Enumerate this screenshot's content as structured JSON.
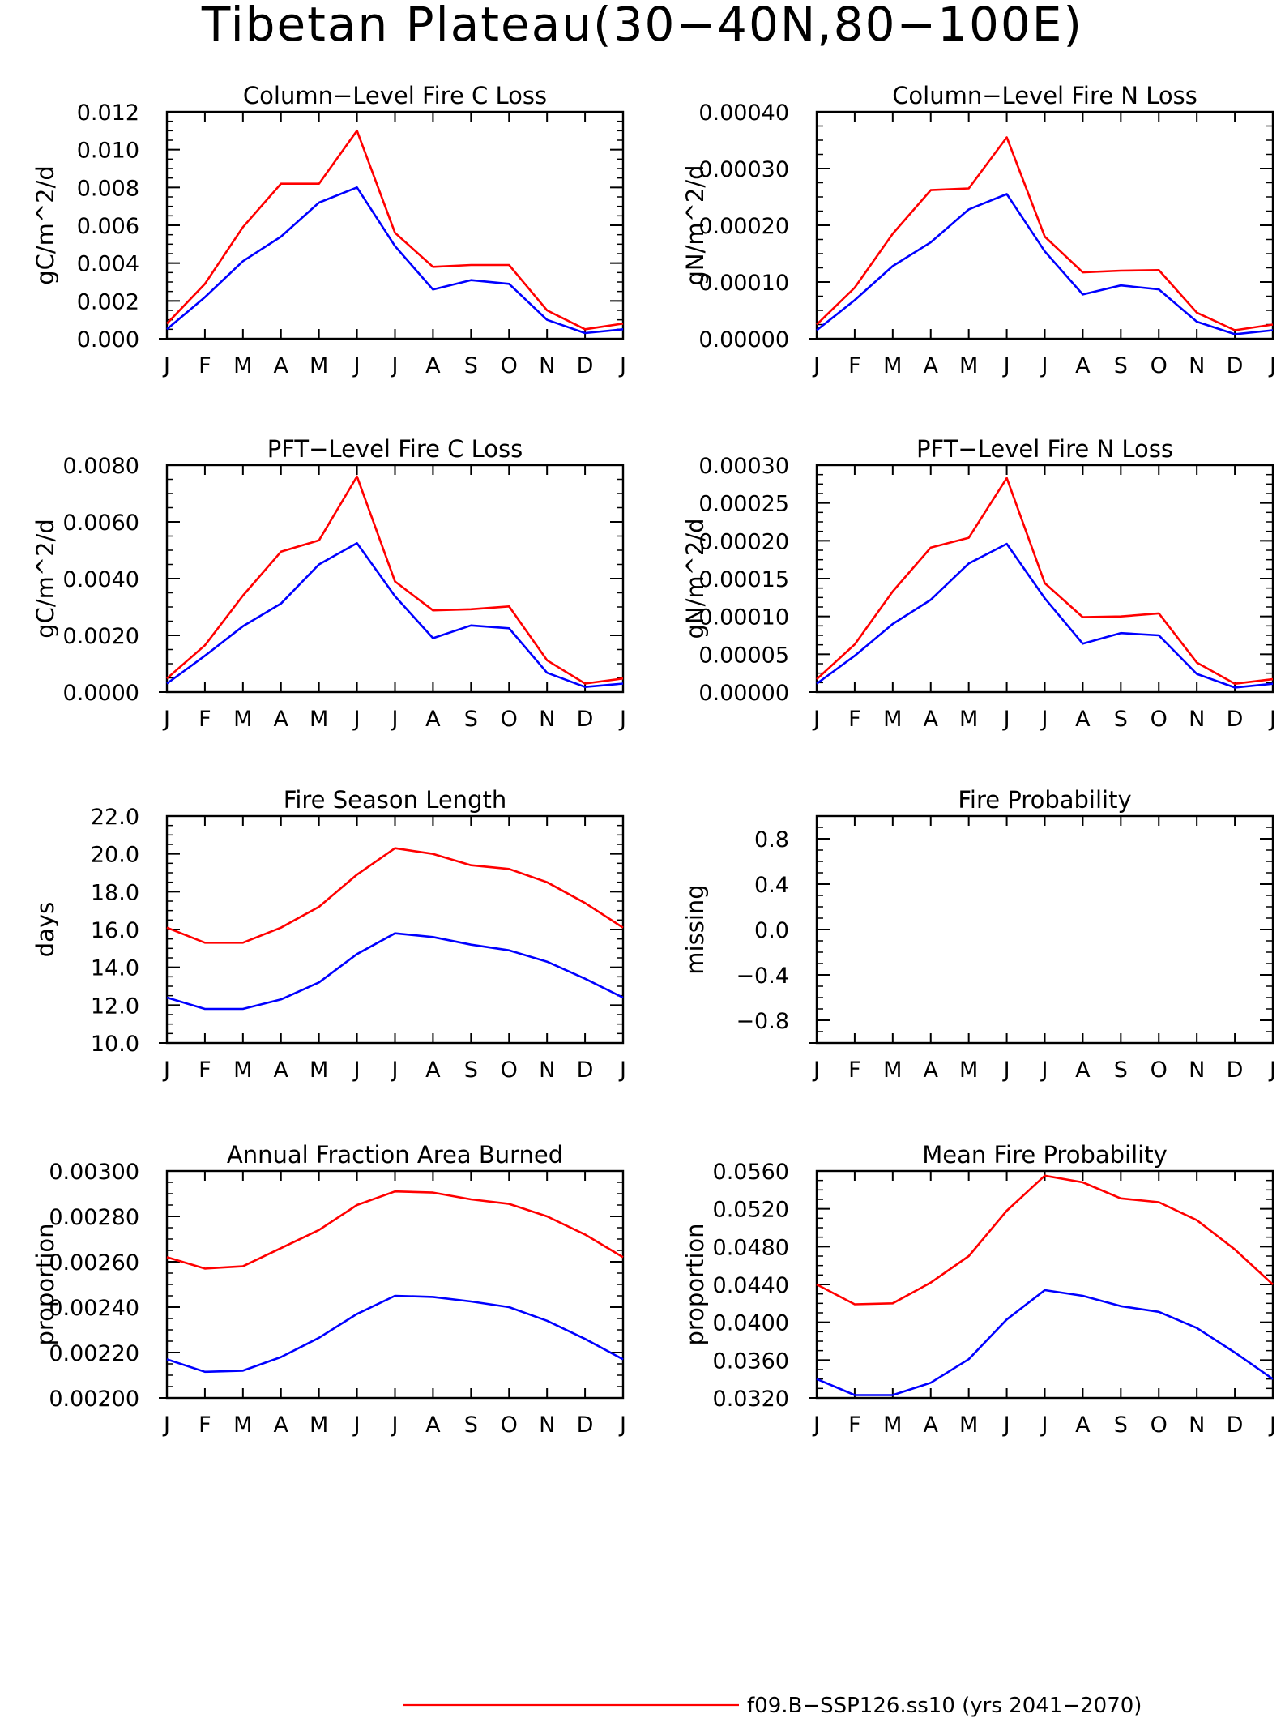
{
  "figure": {
    "title": "Tibetan Plateau(30−40N,80−100E)"
  },
  "legend": [
    {
      "label": "f09.B−SSP126.ss10 (yrs 2041−2070)",
      "color": "#ff0000"
    }
  ],
  "chart_data": [
    {
      "type": "line",
      "title": "Column−Level Fire C Loss",
      "ylabel": "gC/m^2/d",
      "categories": [
        "J",
        "F",
        "M",
        "A",
        "M",
        "J",
        "J",
        "A",
        "S",
        "O",
        "N",
        "D",
        "J"
      ],
      "ylim": [
        0.0,
        0.012
      ],
      "yticks": [
        "0.000",
        "0.002",
        "0.004",
        "0.006",
        "0.008",
        "0.010",
        "0.012"
      ],
      "series": [
        {
          "color": "#ff0000",
          "values": [
            0.0008,
            0.0029,
            0.0059,
            0.0082,
            0.0082,
            0.011,
            0.0056,
            0.0038,
            0.0039,
            0.0039,
            0.0015,
            0.0005,
            0.0008
          ]
        },
        {
          "color": "#0000ff",
          "values": [
            0.0005,
            0.0022,
            0.0041,
            0.0054,
            0.0072,
            0.008,
            0.0049,
            0.0026,
            0.0031,
            0.0029,
            0.001,
            0.0003,
            0.0005
          ]
        }
      ]
    },
    {
      "type": "line",
      "title": "Column−Level Fire N Loss",
      "ylabel": "gN/m^2/d",
      "categories": [
        "J",
        "F",
        "M",
        "A",
        "M",
        "J",
        "J",
        "A",
        "S",
        "O",
        "N",
        "D",
        "J"
      ],
      "ylim": [
        0.0,
        0.0004
      ],
      "yticks": [
        "0.00000",
        "0.00010",
        "0.00020",
        "0.00030",
        "0.00040"
      ],
      "series": [
        {
          "color": "#ff0000",
          "values": [
            2.5e-05,
            9e-05,
            0.000185,
            0.000262,
            0.000265,
            0.000355,
            0.00018,
            0.000117,
            0.00012,
            0.000121,
            4.6e-05,
            1.5e-05,
            2.5e-05
          ]
        },
        {
          "color": "#0000ff",
          "values": [
            1.5e-05,
            6.8e-05,
            0.000128,
            0.00017,
            0.000228,
            0.000255,
            0.000154,
            7.8e-05,
            9.4e-05,
            8.7e-05,
            3e-05,
            8e-06,
            1.5e-05
          ]
        }
      ]
    },
    {
      "type": "line",
      "title": "PFT−Level Fire C Loss",
      "ylabel": "gC/m^2/d",
      "categories": [
        "J",
        "F",
        "M",
        "A",
        "M",
        "J",
        "J",
        "A",
        "S",
        "O",
        "N",
        "D",
        "J"
      ],
      "ylim": [
        0.0,
        0.008
      ],
      "yticks": [
        "0.0000",
        "0.0020",
        "0.0040",
        "0.0060",
        "0.0080"
      ],
      "series": [
        {
          "color": "#ff0000",
          "values": [
            0.00048,
            0.00165,
            0.0034,
            0.00495,
            0.00535,
            0.0076,
            0.0039,
            0.00288,
            0.00292,
            0.00302,
            0.00112,
            0.0003,
            0.00048
          ]
        },
        {
          "color": "#0000ff",
          "values": [
            0.0003,
            0.00128,
            0.00232,
            0.00312,
            0.0045,
            0.00525,
            0.00338,
            0.0019,
            0.00235,
            0.00225,
            0.00068,
            0.00018,
            0.0003
          ]
        }
      ]
    },
    {
      "type": "line",
      "title": "PFT−Level Fire N Loss",
      "ylabel": "gN/m^2/d",
      "categories": [
        "J",
        "F",
        "M",
        "A",
        "M",
        "J",
        "J",
        "A",
        "S",
        "O",
        "N",
        "D",
        "J"
      ],
      "ylim": [
        0.0,
        0.0003
      ],
      "yticks": [
        "0.00000",
        "0.00005",
        "0.00010",
        "0.00015",
        "0.00020",
        "0.00025",
        "0.00030"
      ],
      "series": [
        {
          "color": "#ff0000",
          "values": [
            1.7e-05,
            6.3e-05,
            0.000133,
            0.000191,
            0.000204,
            0.000283,
            0.000144,
            9.9e-05,
            0.0001,
            0.000104,
            3.9e-05,
            1.1e-05,
            1.7e-05
          ]
        },
        {
          "color": "#0000ff",
          "values": [
            1.1e-05,
            4.8e-05,
            9e-05,
            0.000122,
            0.00017,
            0.000196,
            0.000124,
            6.4e-05,
            7.8e-05,
            7.5e-05,
            2.4e-05,
            6e-06,
            1.1e-05
          ]
        }
      ]
    },
    {
      "type": "line",
      "title": "Fire Season Length",
      "ylabel": "days",
      "categories": [
        "J",
        "F",
        "M",
        "A",
        "M",
        "J",
        "J",
        "A",
        "S",
        "O",
        "N",
        "D",
        "J"
      ],
      "ylim": [
        10.0,
        22.0
      ],
      "yticks": [
        "10.0",
        "12.0",
        "14.0",
        "16.0",
        "18.0",
        "20.0",
        "22.0"
      ],
      "series": [
        {
          "color": "#ff0000",
          "values": [
            16.1,
            15.3,
            15.3,
            16.1,
            17.2,
            18.9,
            20.3,
            20.0,
            19.4,
            19.2,
            18.5,
            17.4,
            16.1
          ]
        },
        {
          "color": "#0000ff",
          "values": [
            12.4,
            11.8,
            11.8,
            12.3,
            13.2,
            14.7,
            15.8,
            15.6,
            15.2,
            14.9,
            14.3,
            13.4,
            12.4
          ]
        }
      ]
    },
    {
      "type": "line",
      "title": "Fire Probability",
      "ylabel": "missing",
      "categories": [
        "J",
        "F",
        "M",
        "A",
        "M",
        "J",
        "J",
        "A",
        "S",
        "O",
        "N",
        "D",
        "J"
      ],
      "ylim": [
        -1.0,
        1.0
      ],
      "yticks": [
        "−0.8",
        "−0.4",
        "0.0",
        "0.4",
        "0.8"
      ],
      "yticks_values": [
        -0.8,
        -0.4,
        0.0,
        0.4,
        0.8
      ],
      "series": []
    },
    {
      "type": "line",
      "title": "Annual Fraction Area Burned",
      "ylabel": "proportion",
      "categories": [
        "J",
        "F",
        "M",
        "A",
        "M",
        "J",
        "J",
        "A",
        "S",
        "O",
        "N",
        "D",
        "J"
      ],
      "ylim": [
        0.002,
        0.003
      ],
      "yticks": [
        "0.00200",
        "0.00220",
        "0.00240",
        "0.00260",
        "0.00280",
        "0.00300"
      ],
      "series": [
        {
          "color": "#ff0000",
          "values": [
            0.00262,
            0.00257,
            0.00258,
            0.00266,
            0.00274,
            0.00285,
            0.00291,
            0.002905,
            0.002875,
            0.002855,
            0.0028,
            0.00272,
            0.00262
          ]
        },
        {
          "color": "#0000ff",
          "values": [
            0.00217,
            0.002115,
            0.00212,
            0.00218,
            0.002265,
            0.00237,
            0.00245,
            0.002445,
            0.002425,
            0.0024,
            0.00234,
            0.00226,
            0.00217
          ]
        }
      ]
    },
    {
      "type": "line",
      "title": "Mean Fire Probability",
      "ylabel": "proportion",
      "categories": [
        "J",
        "F",
        "M",
        "A",
        "M",
        "J",
        "J",
        "A",
        "S",
        "O",
        "N",
        "D",
        "J"
      ],
      "ylim": [
        0.032,
        0.056
      ],
      "yticks": [
        "0.0320",
        "0.0360",
        "0.0400",
        "0.0440",
        "0.0480",
        "0.0520",
        "0.0560"
      ],
      "series": [
        {
          "color": "#ff0000",
          "values": [
            0.044,
            0.0419,
            0.042,
            0.0442,
            0.047,
            0.0518,
            0.0555,
            0.0548,
            0.0531,
            0.0527,
            0.0508,
            0.0477,
            0.044
          ]
        },
        {
          "color": "#0000ff",
          "values": [
            0.034,
            0.0323,
            0.0323,
            0.0336,
            0.0361,
            0.0403,
            0.0434,
            0.0428,
            0.0417,
            0.0411,
            0.0394,
            0.0368,
            0.034
          ]
        }
      ]
    }
  ]
}
